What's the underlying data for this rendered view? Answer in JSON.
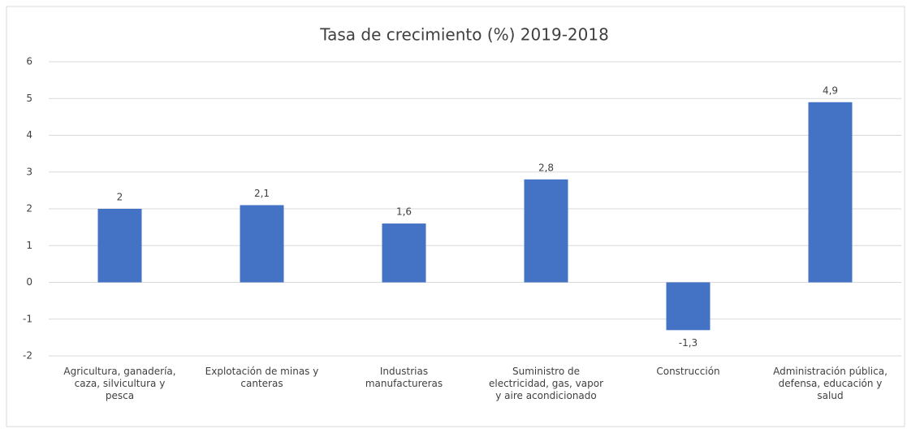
{
  "chart_data": {
    "type": "bar",
    "title": "Tasa de crecimiento (%) 2019-2018",
    "categories": [
      "Agricultura, ganadería, caza, silvicultura y pesca",
      "Explotación de minas y canteras",
      "Industrias manufactureras",
      "Suministro de electricidad, gas, vapor y aire acondicionado",
      "Construcción",
      "Administración pública, defensa, educación y salud"
    ],
    "values": [
      2,
      2.1,
      1.6,
      2.8,
      -1.3,
      4.9
    ],
    "value_labels": [
      "2",
      "2,1",
      "1,6",
      "2,8",
      "-1,3",
      "4,9"
    ],
    "color": "#4472c4",
    "ylim": [
      -2,
      6
    ],
    "yticks": [
      -2,
      -1,
      0,
      1,
      2,
      3,
      4,
      5,
      6
    ],
    "grid": true
  }
}
